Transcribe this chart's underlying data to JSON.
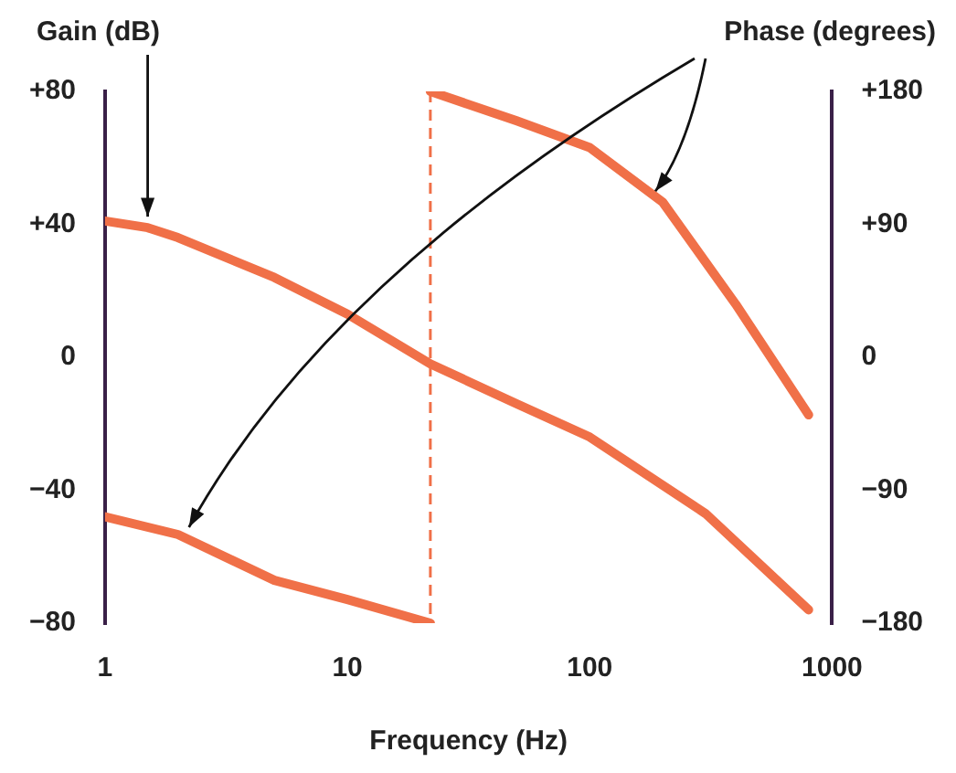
{
  "chart_data": {
    "type": "line",
    "xlabel": "Frequency (Hz)",
    "ylabel": "Gain (dB)",
    "y2label": "Phase (degrees)",
    "log": "x",
    "grid": false,
    "legend": false,
    "marker": "none",
    "line_style": "solid",
    "xlim": [
      1,
      1000
    ],
    "xticks": [
      1,
      10,
      100,
      1000
    ],
    "ylim": [
      -80,
      80
    ],
    "yticks": [
      {
        "value": -80,
        "label": "−80"
      },
      {
        "value": -40,
        "label": "−40"
      },
      0,
      {
        "value": 40,
        "label": "+40"
      },
      {
        "value": 80,
        "label": "+80"
      }
    ],
    "y2lim": [
      -180,
      180
    ],
    "y2ticks": [
      {
        "value": -180,
        "label": "−180"
      },
      {
        "value": -90,
        "label": "−90"
      },
      0,
      {
        "value": 90,
        "label": "+90"
      },
      {
        "value": 180,
        "label": "+180"
      }
    ],
    "series": [
      {
        "color": "#f07048",
        "x": [
          1,
          1.5,
          2,
          5,
          10,
          22,
          50,
          100,
          300,
          800
        ],
        "values": [
          41,
          39,
          36,
          24,
          13,
          -2,
          -14,
          -24,
          -47,
          -76
        ]
      },
      {
        "color": "#f07048",
        "axis": "y2",
        "x": [
          1,
          2,
          5,
          10,
          22
        ],
        "values": [
          -108,
          -120,
          -151,
          -164,
          -180
        ]
      },
      {
        "color": "#f07048",
        "axis": "y2",
        "x": [
          22,
          50,
          100,
          200,
          400,
          800
        ],
        "values": [
          180,
          160,
          142,
          105,
          36,
          -39
        ]
      }
    ],
    "ref_lines": [
      {
        "axis": "x",
        "value": 22,
        "color": "#f07048",
        "line_style": "dashed"
      }
    ]
  }
}
